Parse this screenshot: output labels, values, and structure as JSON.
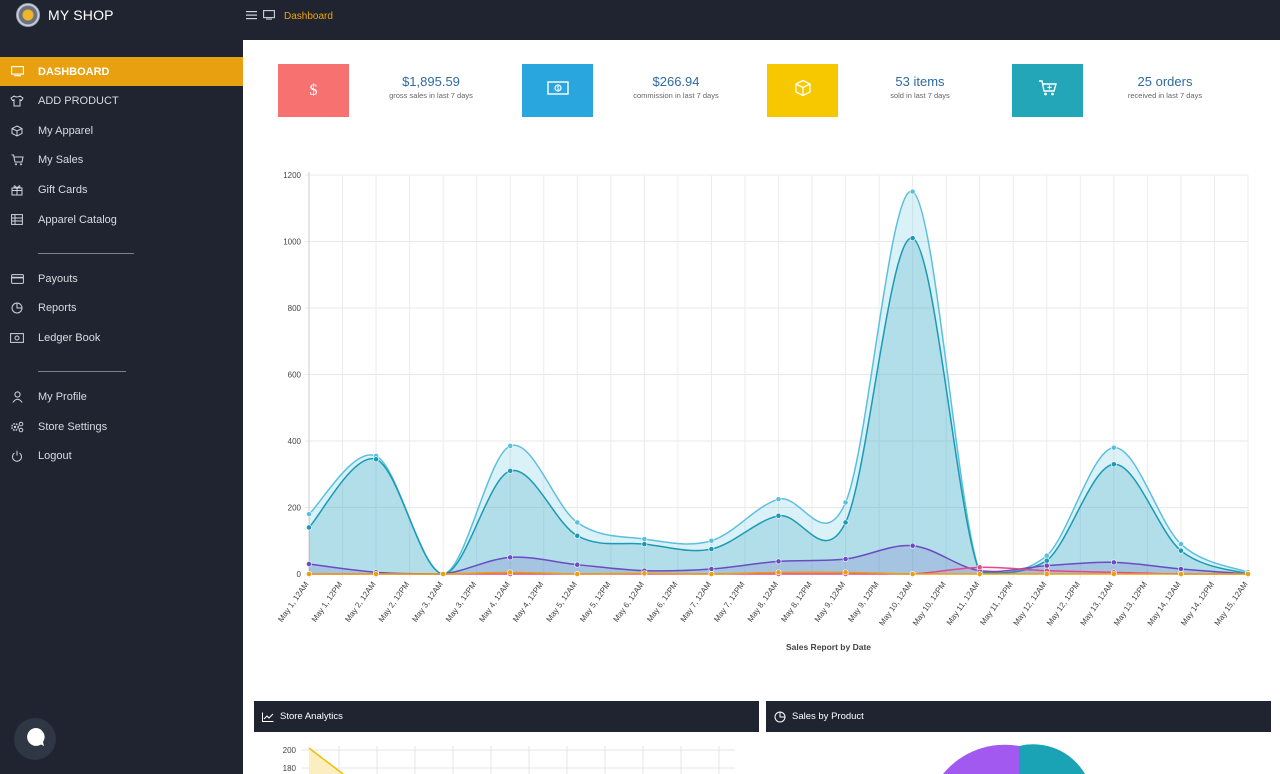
{
  "app": {
    "name": "MY SHOP"
  },
  "topbar": {
    "crumb": "Dashboard"
  },
  "sidebar": {
    "items": [
      {
        "label": "DASHBOARD",
        "icon": "monitor-icon",
        "active": true
      },
      {
        "label": "ADD PRODUCT",
        "icon": "shirt-icon"
      },
      {
        "label": "My Apparel",
        "icon": "box-icon"
      },
      {
        "label": "My Sales",
        "icon": "cart-icon"
      },
      {
        "label": "Gift Cards",
        "icon": "gift-icon"
      },
      {
        "label": "Apparel Catalog",
        "icon": "table-icon"
      },
      {
        "label": "Payouts",
        "icon": "credit-card-icon"
      },
      {
        "label": "Reports",
        "icon": "pie-chart-icon"
      },
      {
        "label": "Ledger Book",
        "icon": "money-icon"
      },
      {
        "label": "My Profile",
        "icon": "user-icon"
      },
      {
        "label": "Store Settings",
        "icon": "settings-icon"
      },
      {
        "label": "Logout",
        "icon": "power-icon"
      }
    ]
  },
  "stats": [
    {
      "value": "$1,895.59",
      "label": "gross sales in last 7 days",
      "color": "#f87171",
      "icon": "dollar-icon"
    },
    {
      "value": "$266.94",
      "label": "commission in last 7 days",
      "color": "#2aa6df",
      "icon": "money-icon"
    },
    {
      "value": "53 items",
      "label": "sold in last 7 days",
      "color": "#f7c800",
      "icon": "box-icon"
    },
    {
      "value": "25 orders",
      "label": "received in last 7 days",
      "color": "#22a6b8",
      "icon": "cart-icon"
    }
  ],
  "chart_data": {
    "type": "area",
    "xlabel": "Sales Report by Date",
    "ylim": [
      0,
      1200
    ],
    "yticks": [
      0,
      200,
      400,
      600,
      800,
      1000,
      1200
    ],
    "grid": true,
    "categories": [
      "May 1, 12AM",
      "May 1, 12PM",
      "May 2, 12AM",
      "May 2, 12PM",
      "May 3, 12AM",
      "May 3, 12PM",
      "May 4, 12AM",
      "May 4, 12PM",
      "May 5, 12AM",
      "May 5, 12PM",
      "May 6, 12AM",
      "May 6, 12PM",
      "May 7, 12AM",
      "May 7, 12PM",
      "May 8, 12AM",
      "May 8, 12PM",
      "May 9, 12AM",
      "May 9, 12PM",
      "May 10, 12AM",
      "May 10, 12PM",
      "May 11, 12AM",
      "May 11, 12PM",
      "May 12, 12AM",
      "May 12, 12PM",
      "May 13, 12AM",
      "May 13, 12PM",
      "May 14, 12AM",
      "May 14, 12PM",
      "May 15, 12AM"
    ],
    "series": [
      {
        "color": "#5bc0de",
        "values": [
          180,
          null,
          355,
          null,
          0,
          null,
          385,
          null,
          155,
          null,
          105,
          null,
          100,
          null,
          225,
          null,
          215,
          null,
          1150,
          null,
          5,
          null,
          55,
          null,
          380,
          null,
          90,
          null,
          5
        ]
      },
      {
        "color": "#1a9ab5",
        "values": [
          140,
          null,
          345,
          null,
          0,
          null,
          310,
          null,
          115,
          null,
          90,
          null,
          75,
          null,
          175,
          null,
          155,
          null,
          1010,
          null,
          5,
          null,
          40,
          null,
          330,
          null,
          70,
          null,
          0
        ]
      },
      {
        "color": "#6a4cc2",
        "values": [
          30,
          null,
          5,
          null,
          0,
          null,
          50,
          null,
          28,
          null,
          10,
          null,
          15,
          null,
          38,
          null,
          45,
          null,
          85,
          null,
          10,
          null,
          25,
          null,
          35,
          null,
          15,
          null,
          0
        ]
      },
      {
        "color": "#e4498a",
        "values": [
          0,
          null,
          0,
          null,
          0,
          null,
          0,
          null,
          0,
          null,
          0,
          null,
          0,
          null,
          0,
          null,
          0,
          null,
          0,
          null,
          20,
          null,
          10,
          null,
          5,
          null,
          0,
          null,
          0
        ]
      },
      {
        "color": "#e8a010",
        "values": [
          0,
          null,
          0,
          null,
          0,
          null,
          5,
          null,
          0,
          null,
          2,
          null,
          0,
          null,
          5,
          null,
          5,
          null,
          0,
          null,
          0,
          null,
          0,
          null,
          0,
          null,
          0,
          null,
          0
        ]
      }
    ]
  },
  "panels": {
    "store_analytics": {
      "title": "Store Analytics",
      "yticks": [
        "200",
        "180"
      ]
    },
    "sales_by_product": {
      "title": "Sales by Product"
    }
  }
}
